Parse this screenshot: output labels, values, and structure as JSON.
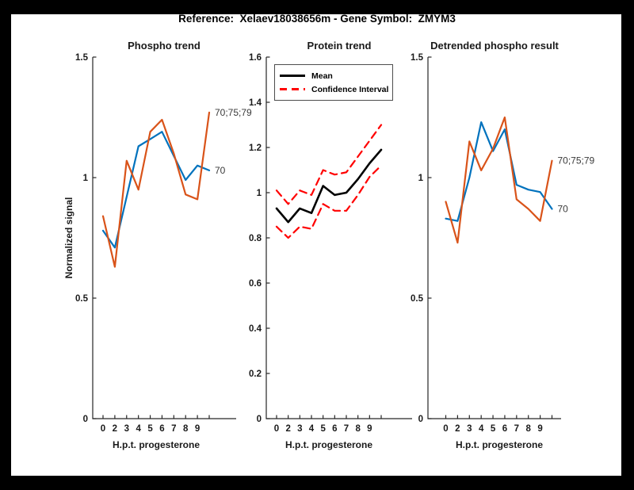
{
  "header": {
    "title": "Reference:  Xelaev18038656m - Gene Symbol:  ZMYM3"
  },
  "colors": {
    "line_blue": "#0072BD",
    "line_orange": "#D95319",
    "ci_red": "#ff0000",
    "mean_black": "#000000",
    "axis": "#262626",
    "end_label_text": "#3a3a3a",
    "figure_background": "#ffffff",
    "window_background": "#000000"
  },
  "chart_data": [
    {
      "type": "line",
      "title": "Phospho trend",
      "xlabel": "H.p.t. progesterone",
      "ylabel": "Normalized signal",
      "ylim": [
        0,
        1.5
      ],
      "y_tick_labels": [
        "0",
        "0.5",
        "1",
        "1.5"
      ],
      "x_tick_labels": [
        "0",
        "2",
        "3",
        "4",
        "5",
        "6",
        "7",
        "8",
        "9",
        ""
      ],
      "grid": false,
      "legend": null,
      "series": [
        {
          "name": "70",
          "color": "#0072BD",
          "style": "solid",
          "end_label": "70",
          "values": [
            0.78,
            0.71,
            0.92,
            1.13,
            1.16,
            1.19,
            1.09,
            0.99,
            1.05,
            1.03
          ]
        },
        {
          "name": "70;75;79",
          "color": "#D95319",
          "style": "solid",
          "end_label": "70;75;79",
          "values": [
            0.84,
            0.63,
            1.07,
            0.95,
            1.19,
            1.24,
            1.1,
            0.93,
            0.91,
            1.27
          ]
        }
      ]
    },
    {
      "type": "line",
      "title": "Protein trend",
      "xlabel": "H.p.t. progesterone",
      "ylabel": "",
      "ylim": [
        0,
        1.6
      ],
      "y_tick_labels": [
        "0",
        "0.2",
        "0.4",
        "0.6",
        "0.8",
        "1",
        "1.2",
        "1.4",
        "1.6"
      ],
      "x_tick_labels": [
        "0",
        "2",
        "3",
        "4",
        "5",
        "6",
        "7",
        "8",
        "9",
        ""
      ],
      "grid": false,
      "legend": {
        "position": "northwest",
        "entries": [
          {
            "label": "Mean",
            "color": "#000000",
            "style": "solid"
          },
          {
            "label": "Confidence Interval",
            "color": "#ff0000",
            "style": "dashed"
          }
        ]
      },
      "series": [
        {
          "name": "Mean",
          "color": "#000000",
          "style": "solid",
          "end_label": "",
          "values": [
            0.93,
            0.87,
            0.93,
            0.91,
            1.03,
            0.99,
            1.0,
            1.06,
            1.13,
            1.19
          ]
        },
        {
          "name": "Confidence Interval upper",
          "color": "#ff0000",
          "style": "dashed",
          "end_label": "",
          "values": [
            1.01,
            0.95,
            1.01,
            0.99,
            1.1,
            1.08,
            1.09,
            1.16,
            1.23,
            1.3
          ]
        },
        {
          "name": "Confidence Interval lower",
          "color": "#ff0000",
          "style": "dashed",
          "end_label": "",
          "values": [
            0.85,
            0.8,
            0.85,
            0.84,
            0.95,
            0.92,
            0.92,
            0.99,
            1.07,
            1.12
          ]
        }
      ]
    },
    {
      "type": "line",
      "title": "Detrended phospho result",
      "xlabel": "H.p.t. progesterone",
      "ylabel": "",
      "ylim": [
        0,
        1.5
      ],
      "y_tick_labels": [
        "0",
        "0.5",
        "1",
        "1.5"
      ],
      "x_tick_labels": [
        "0",
        "2",
        "3",
        "4",
        "5",
        "6",
        "7",
        "8",
        "9",
        ""
      ],
      "grid": false,
      "legend": null,
      "series": [
        {
          "name": "70",
          "color": "#0072BD",
          "style": "solid",
          "end_label": "70",
          "values": [
            0.83,
            0.82,
            1.0,
            1.23,
            1.11,
            1.2,
            0.97,
            0.95,
            0.94,
            0.87
          ]
        },
        {
          "name": "70;75;79",
          "color": "#D95319",
          "style": "solid",
          "end_label": "70;75;79",
          "values": [
            0.9,
            0.73,
            1.15,
            1.03,
            1.12,
            1.25,
            0.91,
            0.87,
            0.82,
            1.07
          ]
        }
      ]
    }
  ]
}
